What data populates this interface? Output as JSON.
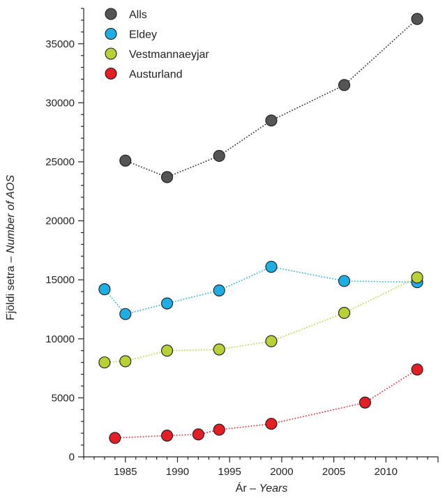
{
  "chart_data": {
    "type": "line",
    "title": "",
    "xlabel": {
      "plain": "Ár – ",
      "italic": "Years"
    },
    "ylabel": {
      "plain": "Fjöldi setra – ",
      "italic": "Number of AOS"
    },
    "xlim": [
      1981,
      2015
    ],
    "ylim": [
      0,
      38000
    ],
    "x_ticks": [
      1985,
      1990,
      1995,
      2000,
      2005,
      2010
    ],
    "y_ticks": [
      0,
      5000,
      10000,
      15000,
      20000,
      25000,
      30000,
      35000
    ],
    "legend_position": "top-left",
    "line_style": "dotted",
    "series": [
      {
        "name": "Alls",
        "color": "#555555",
        "points": [
          [
            1985,
            25100
          ],
          [
            1989,
            23700
          ],
          [
            1994,
            25500
          ],
          [
            1999,
            28500
          ],
          [
            2006,
            31500
          ],
          [
            2013,
            37100
          ]
        ]
      },
      {
        "name": "Eldey",
        "color": "#1eaee3",
        "points": [
          [
            1983,
            14200
          ],
          [
            1985,
            12100
          ],
          [
            1989,
            13000
          ],
          [
            1994,
            14100
          ],
          [
            1999,
            16100
          ],
          [
            2006,
            14900
          ],
          [
            2013,
            14800
          ]
        ]
      },
      {
        "name": "Vestmannaeyjar",
        "color": "#b9d136",
        "points": [
          [
            1983,
            8000
          ],
          [
            1985,
            8100
          ],
          [
            1989,
            9000
          ],
          [
            1994,
            9100
          ],
          [
            1999,
            9800
          ],
          [
            2006,
            12200
          ],
          [
            2013,
            15200
          ]
        ]
      },
      {
        "name": "Austurland",
        "color": "#e31e24",
        "points": [
          [
            1984,
            1600
          ],
          [
            1989,
            1800
          ],
          [
            1992,
            1900
          ],
          [
            1994,
            2300
          ],
          [
            1999,
            2800
          ],
          [
            2008,
            4600
          ],
          [
            2013,
            7400
          ]
        ]
      }
    ]
  }
}
